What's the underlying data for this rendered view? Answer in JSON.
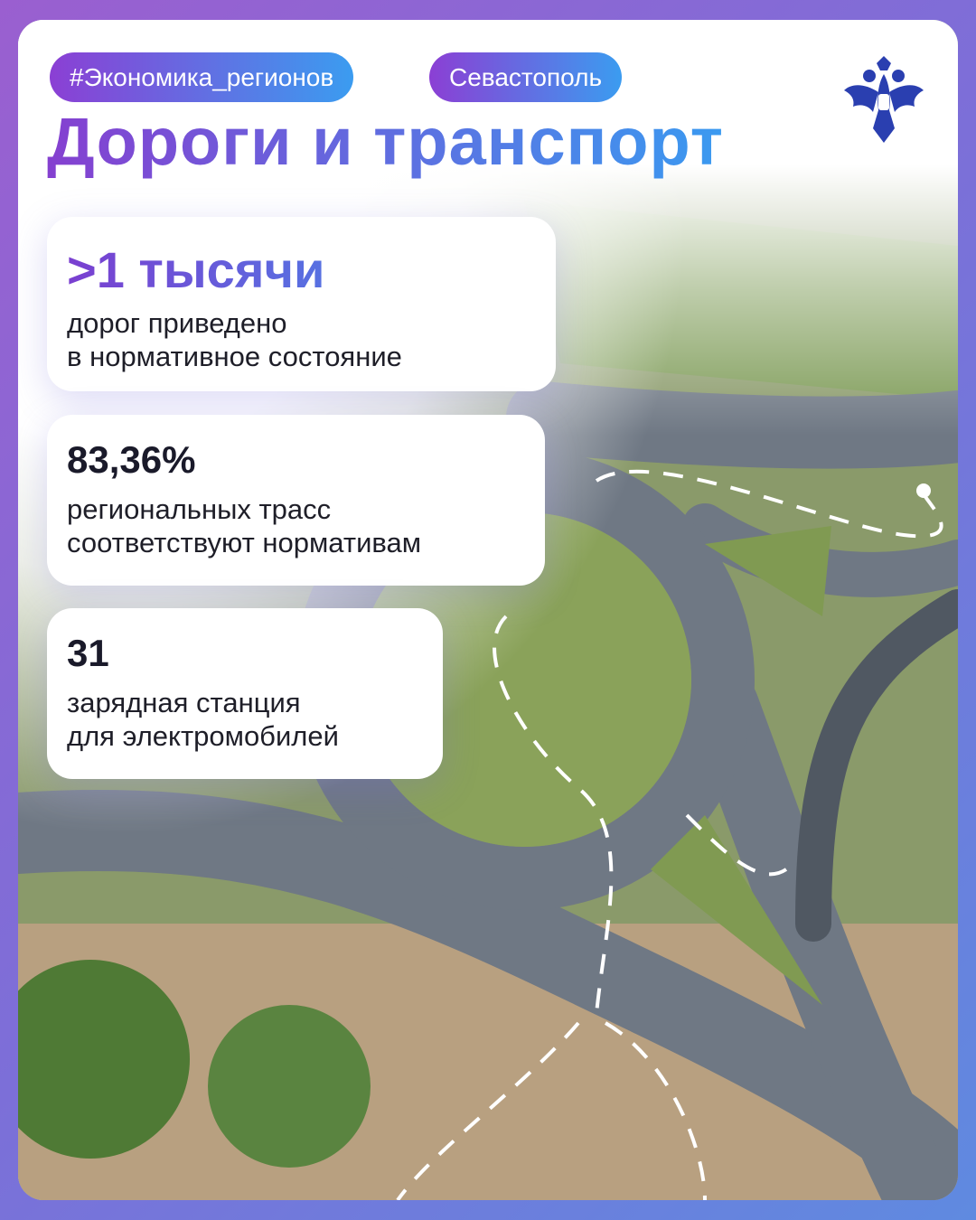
{
  "tags": [
    "#Экономика_регионов",
    "Севастополь"
  ],
  "title": "Дороги и транспорт",
  "logo_icon": "double-headed-eagle-emblem",
  "colors": {
    "accent_purple": "#8540d0",
    "accent_blue": "#3a9af0"
  },
  "stats": [
    {
      "value": ">1 тысячи",
      "line1": "дорог приведено",
      "line2": "в нормативное состояние"
    },
    {
      "value": "83,36%",
      "line1": "региональных трасс",
      "line2": "соответствуют нормативам"
    },
    {
      "value": "31",
      "line1": "зарядная станция",
      "line2": "для электромобилей"
    }
  ]
}
